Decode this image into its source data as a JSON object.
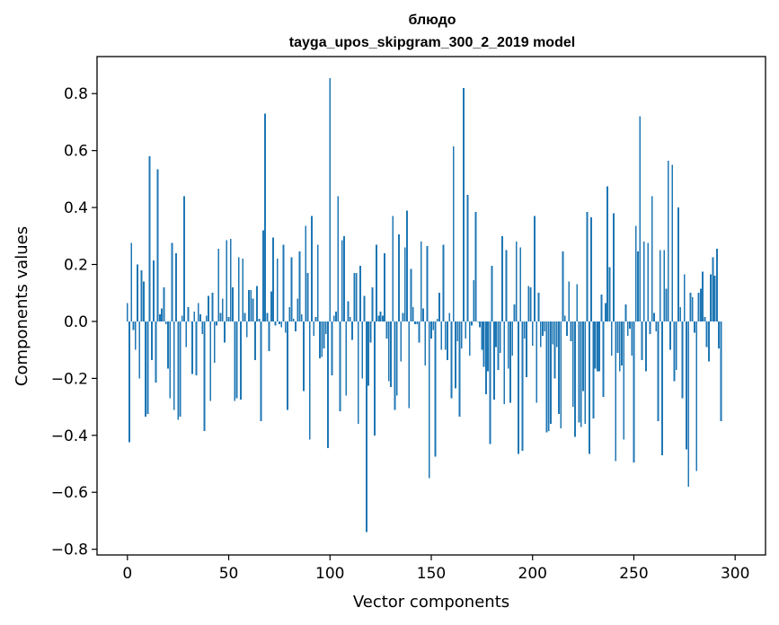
{
  "chart_data": {
    "type": "bar",
    "title": "блюдо",
    "subtitle": "tayga_upos_skipgram_300_2_2019 model",
    "xlabel": "Vector components",
    "ylabel": "Components values",
    "xlim": [
      -15,
      315
    ],
    "ylim": [
      -0.82,
      0.93
    ],
    "xticks": [
      0,
      50,
      100,
      150,
      200,
      250,
      300
    ],
    "xtick_labels": [
      "0",
      "50",
      "100",
      "150",
      "200",
      "250",
      "300"
    ],
    "yticks": [
      -0.8,
      -0.6,
      -0.4,
      -0.2,
      0.0,
      0.2,
      0.4,
      0.6,
      0.8
    ],
    "ytick_labels": [
      "−0.8",
      "−0.6",
      "−0.4",
      "−0.2",
      "0.0",
      "0.2",
      "0.4",
      "0.6",
      "0.8"
    ],
    "grid": false,
    "bar_color": "#1f77b4",
    "values": [
      0.065,
      -0.425,
      0.275,
      -0.03,
      -0.1,
      0.2,
      -0.2,
      0.18,
      0.14,
      -0.335,
      -0.325,
      0.58,
      -0.135,
      0.215,
      -0.215,
      0.535,
      0.025,
      0.045,
      0.12,
      -0.01,
      -0.165,
      -0.27,
      0.275,
      -0.31,
      0.24,
      -0.345,
      -0.335,
      0.02,
      0.44,
      -0.09,
      0.05,
      0.0,
      -0.185,
      0.035,
      -0.19,
      0.065,
      0.025,
      -0.045,
      -0.385,
      0.02,
      0.09,
      -0.28,
      0.1,
      -0.145,
      -0.015,
      0.255,
      0.03,
      0.08,
      -0.075,
      0.285,
      0.015,
      0.29,
      0.12,
      -0.28,
      -0.27,
      0.225,
      -0.275,
      0.22,
      0.03,
      -0.055,
      0.11,
      0.11,
      0.08,
      -0.135,
      0.125,
      0.01,
      -0.35,
      0.32,
      0.73,
      0.03,
      -0.105,
      0.105,
      0.295,
      -0.015,
      0.22,
      -0.01,
      -0.02,
      0.27,
      -0.04,
      -0.31,
      0.05,
      0.225,
      0.01,
      -0.035,
      0.08,
      0.245,
      0.025,
      -0.245,
      0.335,
      0.17,
      -0.415,
      0.37,
      -0.05,
      0.015,
      0.27,
      -0.13,
      -0.125,
      -0.095,
      -0.045,
      -0.445,
      0.855,
      -0.19,
      0.02,
      0.035,
      0.44,
      -0.315,
      0.285,
      0.3,
      -0.26,
      0.07,
      0.015,
      -0.065,
      0.17,
      0.17,
      -0.36,
      0.195,
      -0.2,
      0.09,
      -0.74,
      -0.225,
      -0.075,
      0.12,
      -0.4,
      0.27,
      0.02,
      0.035,
      0.02,
      0.24,
      -0.06,
      -0.21,
      -0.23,
      0.37,
      -0.31,
      -0.26,
      0.305,
      -0.14,
      0.03,
      0.26,
      0.39,
      -0.305,
      0.185,
      0.05,
      -0.01,
      -0.01,
      -0.075,
      0.28,
      0.045,
      -0.155,
      0.265,
      -0.55,
      -0.06,
      -0.03,
      -0.475,
      0.01,
      0.1,
      -0.1,
      0.27,
      -0.1,
      -0.135,
      0.03,
      -0.27,
      0.615,
      -0.235,
      -0.07,
      -0.335,
      -0.095,
      0.82,
      -0.06,
      0.445,
      -0.12,
      -0.015,
      0.145,
      0.385,
      0.0,
      -0.02,
      -0.1,
      -0.16,
      -0.255,
      -0.175,
      -0.43,
      0.195,
      -0.275,
      -0.09,
      -0.17,
      -0.11,
      0.3,
      -0.29,
      0.25,
      -0.165,
      -0.285,
      -0.12,
      0.06,
      0.28,
      -0.465,
      0.26,
      -0.455,
      -0.06,
      -0.195,
      0.125,
      0.12,
      -0.085,
      0.37,
      -0.285,
      0.1,
      -0.09,
      -0.05,
      -0.035,
      -0.39,
      -0.385,
      -0.36,
      -0.08,
      -0.2,
      -0.09,
      -0.325,
      -0.375,
      0.245,
      0.02,
      -0.05,
      0.14,
      -0.07,
      -0.3,
      -0.405,
      0.13,
      -0.355,
      -0.37,
      -0.245,
      -0.36,
      0.385,
      -0.465,
      0.365,
      -0.34,
      -0.165,
      -0.175,
      -0.175,
      0.095,
      -0.265,
      0.065,
      0.475,
      0.19,
      -0.12,
      0.38,
      -0.49,
      -0.11,
      -0.175,
      -0.155,
      -0.415,
      0.06,
      -0.05,
      -0.025,
      -0.12,
      -0.495,
      0.335,
      0.245,
      0.72,
      -0.135,
      0.28,
      -0.175,
      0.275,
      -0.045,
      0.44,
      0.03,
      -0.035,
      -0.35,
      0.25,
      -0.47,
      0.25,
      0.115,
      0.565,
      -0.1,
      0.55,
      -0.21,
      -0.17,
      0.4,
      0.05,
      -0.27,
      0.165,
      -0.45,
      -0.58,
      0.1,
      0.085,
      -0.04,
      -0.525,
      0.1,
      0.115,
      0.175,
      0.015,
      -0.09,
      -0.14,
      0.165,
      0.225,
      0.16,
      0.255,
      -0.095,
      -0.35
    ]
  }
}
